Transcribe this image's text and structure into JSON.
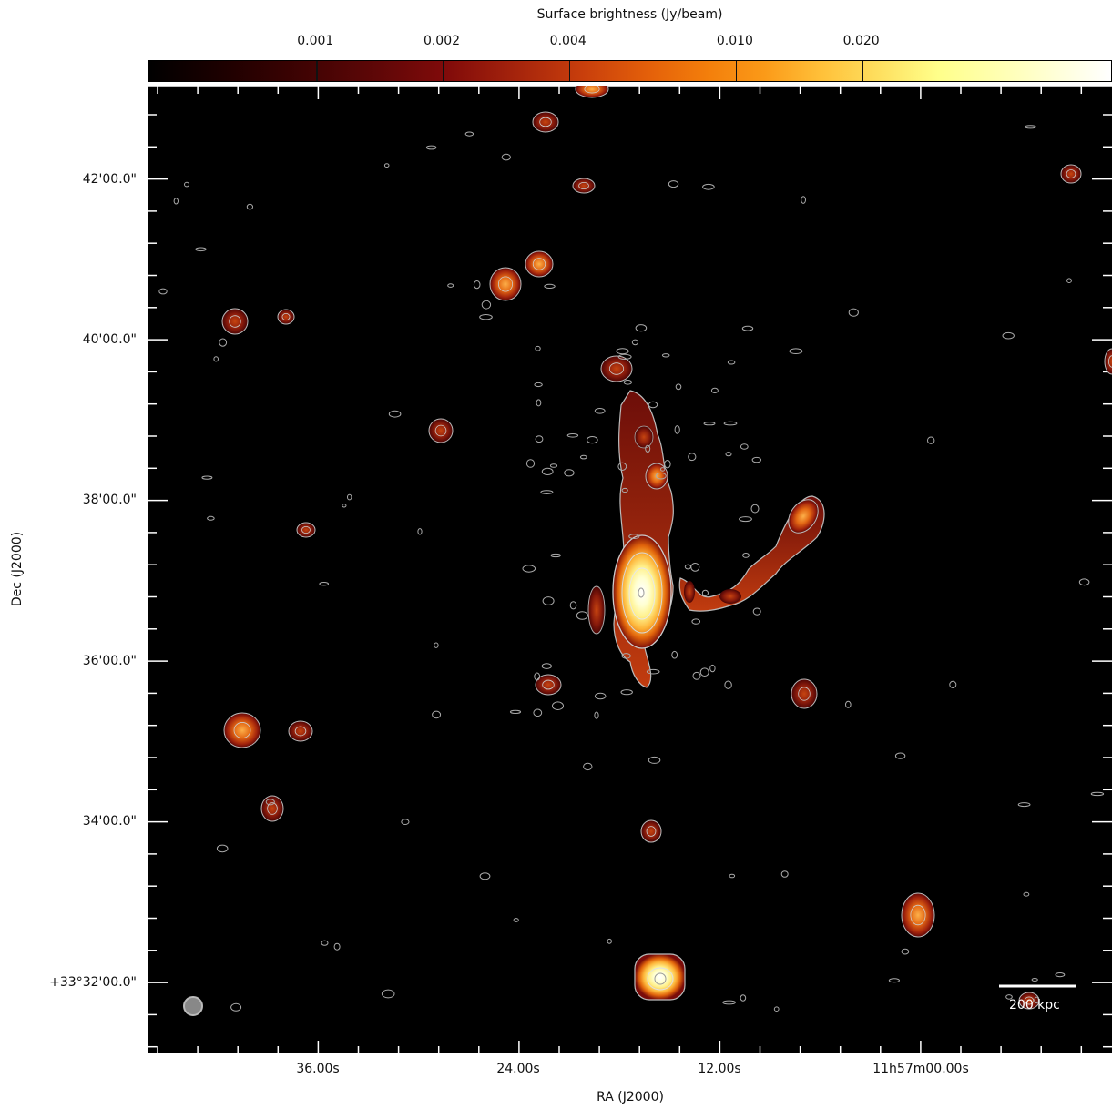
{
  "colorbar": {
    "label": "Surface brightness (Jy/beam)",
    "ticks": [
      {
        "label": "0.001",
        "frac": 0.174
      },
      {
        "label": "0.002",
        "frac": 0.305
      },
      {
        "label": "0.004",
        "frac": 0.436
      },
      {
        "label": "0.010",
        "frac": 0.609
      },
      {
        "label": "0.020",
        "frac": 0.74
      }
    ],
    "colormap": "afmhot"
  },
  "axes": {
    "xlabel": "RA (J2000)",
    "ylabel": "Dec (J2000)",
    "xticks": [
      "36.00s",
      "24.00s",
      "12.00s",
      "11h57m00.00s"
    ],
    "yticks": [
      "42'00.0\"",
      "40'00.0\"",
      "38'00.0\"",
      "36'00.0\"",
      "34'00.0\"",
      "+33°32'00.0\""
    ]
  },
  "scale_bar": {
    "label": "200 kpc"
  },
  "colors": {
    "background": "#000000",
    "contour": "#bbbbbb",
    "frame": "#ffffff"
  }
}
